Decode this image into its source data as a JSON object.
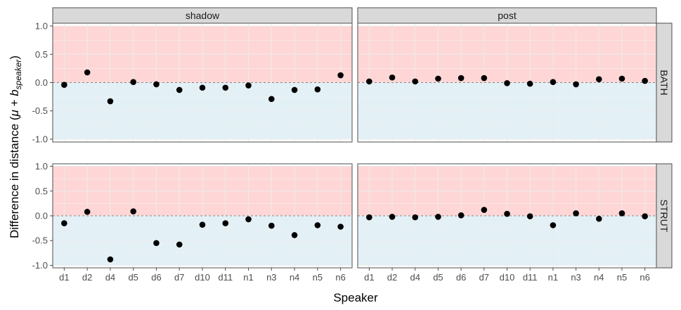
{
  "chart_data": {
    "type": "scatter",
    "xlabel": "Speaker",
    "ylabel_main": "Difference in distance (",
    "ylabel_mu": "μ",
    "ylabel_plus": " + ",
    "ylabel_b": "b",
    "ylabel_sub": "speaker",
    "ylabel_close": ")",
    "ylim": [
      -1.05,
      1.05
    ],
    "yticks": [
      1.0,
      0.5,
      0.0,
      -0.5,
      -1.0
    ],
    "ytick_labels": [
      "1.0",
      "0.5",
      "0.0",
      "-0.5",
      "-1.0"
    ],
    "categories": [
      "d1",
      "d2",
      "d4",
      "d5",
      "d6",
      "d7",
      "d10",
      "d11",
      "n1",
      "n3",
      "n4",
      "n5",
      "n6"
    ],
    "col_facets": [
      "shadow",
      "post"
    ],
    "row_facets": [
      "BATH",
      "STRUT"
    ],
    "bands": {
      "positive_color": "#ffd6d6",
      "negative_color": "#e3f1f7",
      "range": [
        -1,
        1
      ]
    },
    "panels": [
      {
        "col": "shadow",
        "row": "BATH",
        "values": [
          -0.04,
          0.18,
          -0.33,
          0.01,
          -0.03,
          -0.13,
          -0.09,
          -0.09,
          -0.05,
          -0.29,
          -0.13,
          -0.12,
          0.13
        ]
      },
      {
        "col": "post",
        "row": "BATH",
        "values": [
          0.02,
          0.09,
          0.02,
          0.07,
          0.08,
          0.08,
          -0.01,
          -0.02,
          0.01,
          -0.03,
          0.06,
          0.07,
          0.03
        ]
      },
      {
        "col": "shadow",
        "row": "STRUT",
        "values": [
          -0.15,
          0.08,
          -0.88,
          0.09,
          -0.55,
          -0.58,
          -0.18,
          -0.15,
          -0.07,
          -0.2,
          -0.39,
          -0.19,
          -0.22
        ]
      },
      {
        "col": "post",
        "row": "STRUT",
        "values": [
          -0.03,
          -0.02,
          -0.03,
          -0.02,
          0.01,
          0.12,
          0.04,
          -0.01,
          -0.19,
          0.05,
          -0.06,
          0.05,
          -0.01
        ]
      }
    ]
  }
}
